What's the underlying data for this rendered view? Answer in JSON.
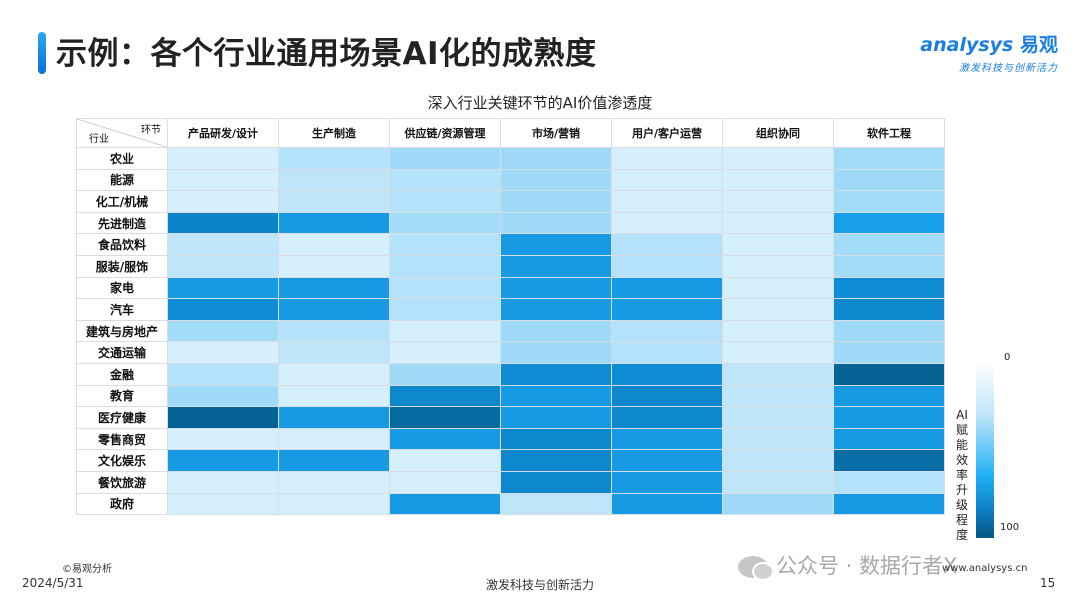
{
  "header": {
    "title": "示例：各个行业通用场景AI化的成熟度",
    "logo_main": "analysys",
    "logo_cn": "易观",
    "logo_tagline": "激发科技与创新活力"
  },
  "colors": {
    "accent": "#1a7fe0",
    "scale": [
      "#ffffff",
      "#c8e9fb",
      "#9fdaf8",
      "#1ba8f4",
      "#0b84c9",
      "#035784"
    ]
  },
  "chart_data": {
    "type": "heatmap",
    "title": "深入行业关键环节的AI价值渗透度",
    "corner_col_label": "环节",
    "corner_row_label": "行业",
    "columns": [
      "产品研发/设计",
      "生产制造",
      "供应链/资源管理",
      "市场/营销",
      "用户/客户运营",
      "组织协同",
      "软件工程"
    ],
    "rows": [
      "农业",
      "能源",
      "化工/机械",
      "先进制造",
      "食品饮料",
      "服装/服饰",
      "家电",
      "汽车",
      "建筑与房地产",
      "交通运输",
      "金融",
      "教育",
      "医疗健康",
      "零售商贸",
      "文化娱乐",
      "餐饮旅游",
      "政府"
    ],
    "values": [
      [
        15,
        30,
        40,
        40,
        15,
        15,
        38
      ],
      [
        15,
        25,
        30,
        40,
        15,
        15,
        40
      ],
      [
        15,
        25,
        30,
        40,
        15,
        15,
        38
      ],
      [
        80,
        68,
        38,
        40,
        15,
        15,
        65
      ],
      [
        25,
        15,
        30,
        68,
        30,
        15,
        38
      ],
      [
        25,
        15,
        30,
        68,
        30,
        15,
        38
      ],
      [
        68,
        68,
        30,
        68,
        68,
        15,
        75
      ],
      [
        75,
        68,
        30,
        68,
        68,
        15,
        78
      ],
      [
        38,
        30,
        15,
        40,
        30,
        15,
        40
      ],
      [
        15,
        25,
        15,
        40,
        30,
        15,
        40
      ],
      [
        30,
        15,
        40,
        75,
        75,
        25,
        95
      ],
      [
        40,
        15,
        78,
        68,
        78,
        25,
        68
      ],
      [
        95,
        68,
        92,
        68,
        78,
        25,
        68
      ],
      [
        15,
        15,
        68,
        78,
        68,
        25,
        68
      ],
      [
        68,
        68,
        15,
        78,
        68,
        25,
        90
      ],
      [
        15,
        15,
        15,
        78,
        68,
        25,
        30
      ],
      [
        15,
        15,
        68,
        25,
        68,
        40,
        68
      ]
    ],
    "legend": {
      "label": "AI赋能效率升级程度",
      "min_label": "0",
      "max_label": "100",
      "min": 0,
      "max": 100
    }
  },
  "footer": {
    "source": "©易观分析",
    "date": "2024/5/31",
    "slogan": "激发科技与创新活力",
    "site": "www.analysys.cn",
    "page_number": "15",
    "watermark": "公众号 · 数据行者X"
  }
}
